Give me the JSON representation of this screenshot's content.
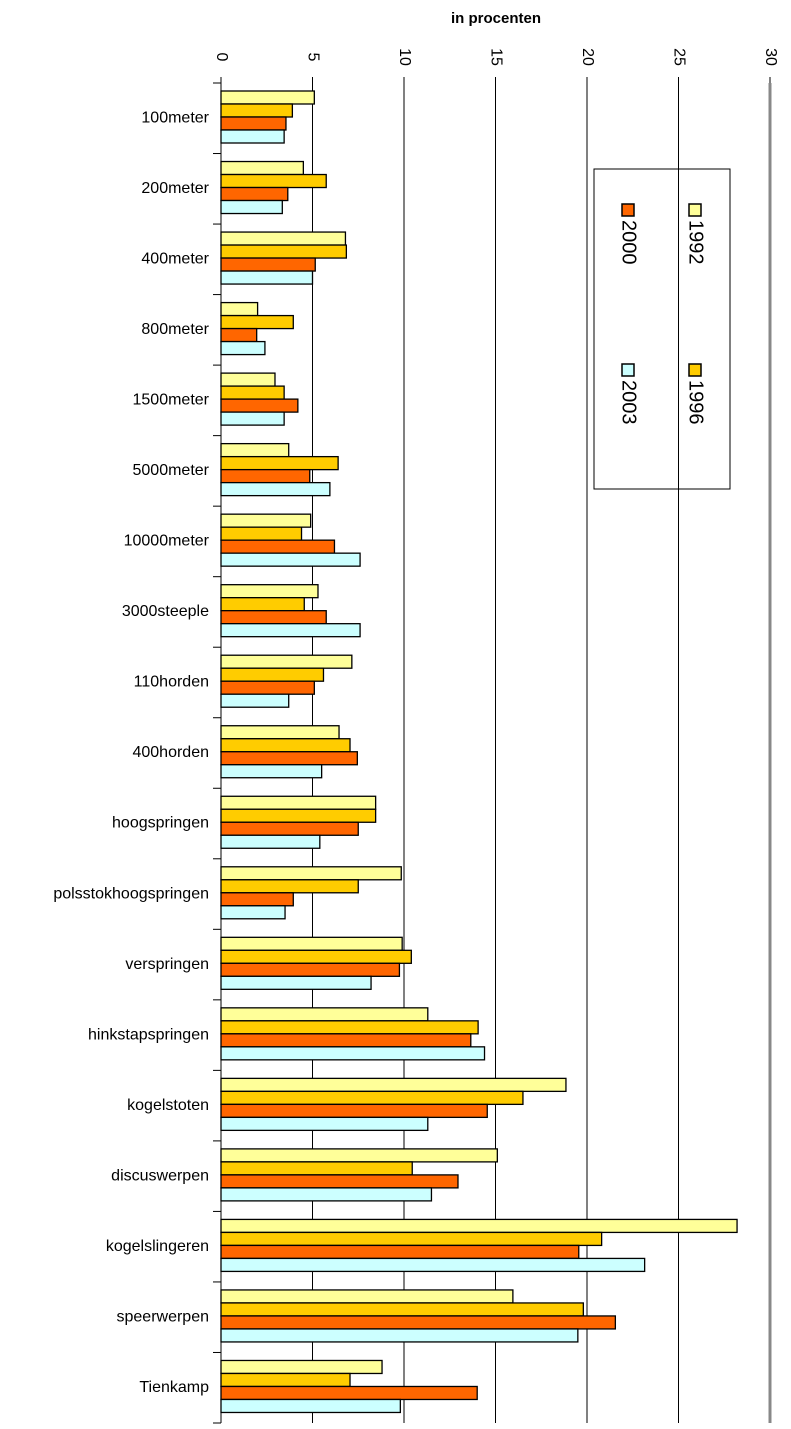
{
  "chart_data": {
    "type": "bar",
    "orientation": "horizontal",
    "title": "in procenten",
    "categories": [
      "100meter",
      "200meter",
      "400meter",
      "800meter",
      "1500meter",
      "5000meter",
      "10000meter",
      "3000steeple",
      "110horden",
      "400horden",
      "hoogspringen",
      "polsstokhoogspringen",
      "verspringen",
      "hinkstapspringen",
      "kogelstoten",
      "discuswerpen",
      "kogelslingeren",
      "speerwerpen",
      "Tienkamp"
    ],
    "series": [
      {
        "name": "1992",
        "color": "#ffff99",
        "values": [
          5.1,
          4.5,
          6.8,
          2.0,
          2.95,
          3.7,
          4.9,
          5.3,
          7.15,
          6.45,
          8.45,
          9.85,
          9.9,
          11.3,
          18.85,
          15.1,
          28.2,
          15.95,
          8.8
        ]
      },
      {
        "name": "1996",
        "color": "#ffcc00",
        "values": [
          3.9,
          5.75,
          6.85,
          3.95,
          3.45,
          6.4,
          4.4,
          4.55,
          5.6,
          7.05,
          8.45,
          7.5,
          10.4,
          14.05,
          16.5,
          10.45,
          20.8,
          19.8,
          7.05
        ]
      },
      {
        "name": "2000",
        "color": "#ff6600",
        "values": [
          3.55,
          3.65,
          5.15,
          1.95,
          4.2,
          4.85,
          6.2,
          5.75,
          5.1,
          7.45,
          7.5,
          3.95,
          9.75,
          13.65,
          14.55,
          12.95,
          19.55,
          21.55,
          14.0
        ]
      },
      {
        "name": "2003",
        "color": "#ccffff",
        "values": [
          3.45,
          3.35,
          5.0,
          2.4,
          3.45,
          5.95,
          7.6,
          7.6,
          3.7,
          5.5,
          5.4,
          3.5,
          8.2,
          14.4,
          11.3,
          11.5,
          23.15,
          19.5,
          9.8
        ]
      }
    ],
    "xlim": [
      0,
      30
    ],
    "xticks": [
      0,
      5,
      10,
      15,
      20,
      25,
      30
    ],
    "grid": true,
    "legend_position": "top-right"
  }
}
